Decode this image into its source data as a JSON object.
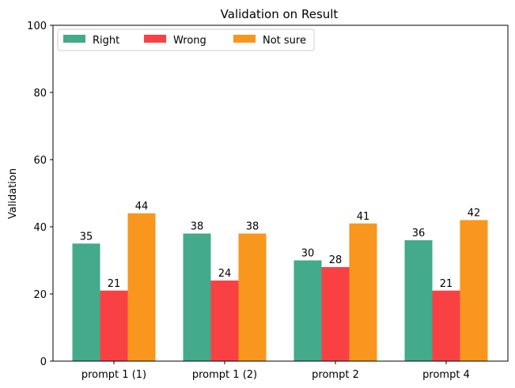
{
  "chart_data": {
    "type": "bar",
    "title": "Validation on Result",
    "xlabel": "",
    "ylabel": "Validation",
    "ylim": [
      0,
      100
    ],
    "yticks": [
      0,
      20,
      40,
      60,
      80,
      100
    ],
    "categories": [
      "prompt 1 (1)",
      "prompt 1 (2)",
      "prompt 2",
      "prompt 4"
    ],
    "series": [
      {
        "name": "Right",
        "color": "#43aa8b",
        "values": [
          35,
          38,
          30,
          36
        ]
      },
      {
        "name": "Wrong",
        "color": "#f94144",
        "values": [
          21,
          24,
          28,
          21
        ]
      },
      {
        "name": "Not sure",
        "color": "#f8961e",
        "values": [
          44,
          38,
          41,
          42
        ]
      }
    ],
    "legend": "top-left",
    "grid": false
  }
}
